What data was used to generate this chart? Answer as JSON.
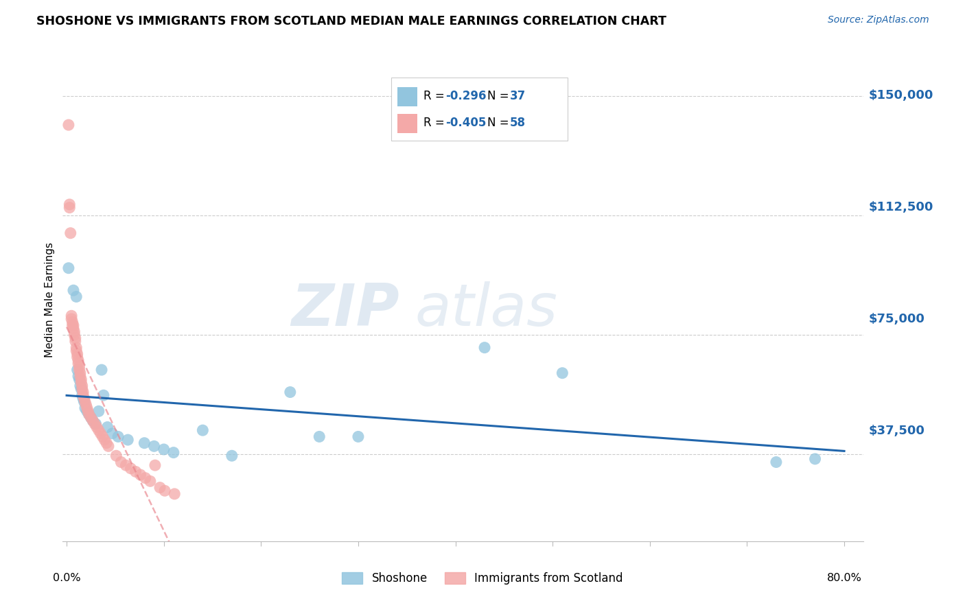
{
  "title": "SHOSHONE VS IMMIGRANTS FROM SCOTLAND MEDIAN MALE EARNINGS CORRELATION CHART",
  "source": "Source: ZipAtlas.com",
  "ylabel": "Median Male Earnings",
  "yticks": [
    0,
    37500,
    75000,
    112500,
    150000
  ],
  "ytick_labels": [
    "",
    "$37,500",
    "$75,000",
    "$112,500",
    "$150,000"
  ],
  "ymin": 10000,
  "ymax": 162000,
  "xmin": -0.004,
  "xmax": 0.82,
  "legend_r_blue": "-0.296",
  "legend_n_blue": "37",
  "legend_r_pink": "-0.405",
  "legend_n_pink": "58",
  "watermark_zip": "ZIP",
  "watermark_atlas": "atlas",
  "shoshone_color": "#92C5DE",
  "scotland_color": "#F4A9A8",
  "line_blue_color": "#2166AC",
  "line_pink_color": "#E8828A",
  "shoshone_x": [
    0.002,
    0.007,
    0.01,
    0.011,
    0.012,
    0.013,
    0.014,
    0.015,
    0.016,
    0.017,
    0.018,
    0.019,
    0.021,
    0.023,
    0.025,
    0.027,
    0.03,
    0.033,
    0.036,
    0.038,
    0.042,
    0.047,
    0.053,
    0.063,
    0.08,
    0.09,
    0.1,
    0.11,
    0.14,
    0.17,
    0.23,
    0.26,
    0.3,
    0.43,
    0.51,
    0.73,
    0.77
  ],
  "shoshone_y": [
    96000,
    89000,
    87000,
    64000,
    62000,
    61000,
    59000,
    58000,
    56000,
    55000,
    54000,
    52000,
    51000,
    50000,
    49000,
    48000,
    47000,
    51000,
    64000,
    56000,
    46000,
    44000,
    43000,
    42000,
    41000,
    40000,
    39000,
    38000,
    45000,
    37000,
    57000,
    43000,
    43000,
    71000,
    63000,
    35000,
    36000
  ],
  "scotland_x": [
    0.002,
    0.003,
    0.003,
    0.004,
    0.005,
    0.005,
    0.006,
    0.006,
    0.007,
    0.007,
    0.008,
    0.008,
    0.009,
    0.009,
    0.01,
    0.01,
    0.011,
    0.011,
    0.012,
    0.012,
    0.013,
    0.013,
    0.014,
    0.014,
    0.015,
    0.015,
    0.016,
    0.016,
    0.017,
    0.017,
    0.018,
    0.019,
    0.02,
    0.021,
    0.022,
    0.023,
    0.025,
    0.027,
    0.029,
    0.031,
    0.033,
    0.035,
    0.037,
    0.039,
    0.041,
    0.043,
    0.051,
    0.056,
    0.061,
    0.066,
    0.071,
    0.076,
    0.081,
    0.086,
    0.091,
    0.096,
    0.101,
    0.111
  ],
  "scotland_y": [
    141000,
    116000,
    115000,
    107000,
    81000,
    80000,
    79000,
    78000,
    78000,
    77000,
    76000,
    75000,
    74000,
    73000,
    71000,
    70000,
    69000,
    68000,
    67000,
    66000,
    65000,
    64000,
    63000,
    62000,
    61000,
    60000,
    59000,
    58000,
    57000,
    56000,
    55000,
    54000,
    53000,
    52000,
    51000,
    50000,
    49000,
    48000,
    47000,
    46000,
    45000,
    44000,
    43000,
    42000,
    41000,
    40000,
    37000,
    35000,
    34000,
    33000,
    32000,
    31000,
    30000,
    29000,
    34000,
    27000,
    26000,
    25000
  ]
}
